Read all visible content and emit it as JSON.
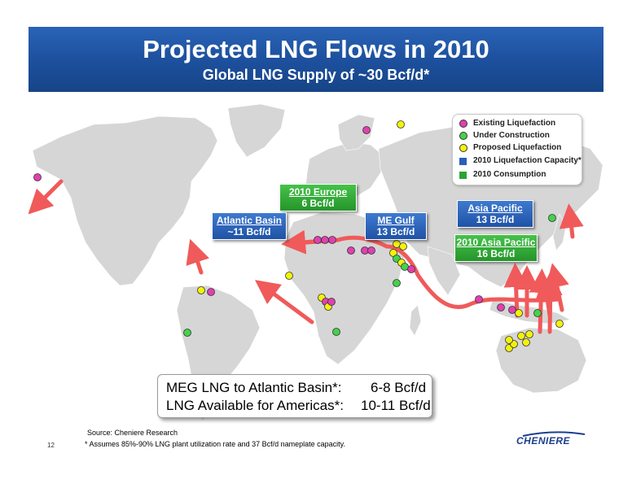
{
  "header": {
    "title": "Projected LNG Flows in 2010",
    "subtitle": "Global LNG Supply of ~30 Bcf/d*"
  },
  "legend": {
    "items": [
      {
        "label": "Existing Liquefaction",
        "color": "#e040b0"
      },
      {
        "label": "Under Construction",
        "color": "#44d24a"
      },
      {
        "label": "Proposed Liquefaction",
        "color": "#f3f20a"
      },
      {
        "label": "2010 Liquefaction Capacity*",
        "color": "#2a5fb8"
      },
      {
        "label": "2010 Consumption",
        "color": "#2fa234"
      }
    ]
  },
  "regions": {
    "europe": {
      "name": "2010 Europe",
      "value": "6 Bcf/d",
      "color": "#2fa234"
    },
    "atlantic": {
      "name": "Atlantic Basin",
      "value": "~11 Bcf/d",
      "color": "#2a5fb8"
    },
    "me_gulf": {
      "name": "ME Gulf",
      "value": "13 Bcf/d",
      "color": "#2a5fb8"
    },
    "asia_pacific": {
      "name": "Asia Pacific",
      "value": "13 Bcf/d",
      "color": "#2a5fb8"
    },
    "asia_pacific_2010": {
      "name": "2010 Asia Pacific",
      "value": "16 Bcf/d",
      "color": "#2fa234"
    }
  },
  "callout": {
    "line1_label": "MEG LNG to Atlantic Basin*:",
    "line1_value": "6-8 Bcf/d",
    "line2_label": "LNG Available for Americas*:",
    "line2_value": "10-11 Bcf/d"
  },
  "footer": {
    "source": "Source: Cheniere Research",
    "footnote": "* Assumes 85%-90% LNG plant utilization rate and 37 Bcf/d nameplate capacity.",
    "page_number": "12",
    "logo": "CHENIERE"
  },
  "colors": {
    "banner": "#1f52a5",
    "arrow": "#f05a5a",
    "land": "#d6d6d6",
    "existing": "#e040b0",
    "under_construction": "#44d24a",
    "proposed": "#f3f20a"
  }
}
